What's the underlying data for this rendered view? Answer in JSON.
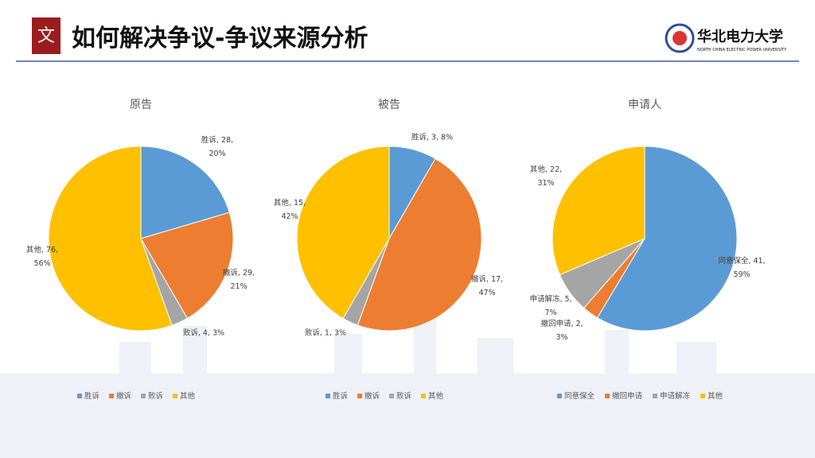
{
  "header": {
    "icon_text": "文",
    "title": "如何解决争议-争议来源分析",
    "logo_text": "华北电力大学",
    "logo_subtext": "NORTH CHINA ELECTRIC POWER UNIVERSITY"
  },
  "chart_data": [
    {
      "type": "pie",
      "title": "原告",
      "categories": [
        "胜诉",
        "撤诉",
        "败诉",
        "其他"
      ],
      "values": [
        28,
        29,
        4,
        76
      ],
      "value_labels": [
        "胜诉, 28, 20%",
        "撤诉, 29, 21%",
        "败诉, 4, 3%",
        "其他, 76, 56%"
      ],
      "colors": [
        "#5b9bd5",
        "#ed7d31",
        "#a5a5a5",
        "#ffc000"
      ],
      "legend": "bottom"
    },
    {
      "type": "pie",
      "title": "被告",
      "categories": [
        "胜诉",
        "撤诉",
        "败诉",
        "其他"
      ],
      "values": [
        3,
        17,
        1,
        15
      ],
      "value_labels": [
        "胜诉, 3, 8%",
        "撤诉, 17, 47%",
        "败诉, 1, 3%",
        "其他, 15, 42%"
      ],
      "colors": [
        "#5b9bd5",
        "#ed7d31",
        "#a5a5a5",
        "#ffc000"
      ],
      "legend": "bottom"
    },
    {
      "type": "pie",
      "title": "申请人",
      "categories": [
        "同意保全",
        "撤回申请",
        "申请解冻",
        "其他"
      ],
      "values": [
        41,
        2,
        5,
        22
      ],
      "value_labels": [
        "同意保全, 41, 59%",
        "撤回申请, 2, 3%",
        "申请解冻, 5, 7%",
        "其他, 22, 31%"
      ],
      "colors": [
        "#5b9bd5",
        "#ed7d31",
        "#a5a5a5",
        "#ffc000"
      ],
      "legend": "bottom"
    }
  ]
}
